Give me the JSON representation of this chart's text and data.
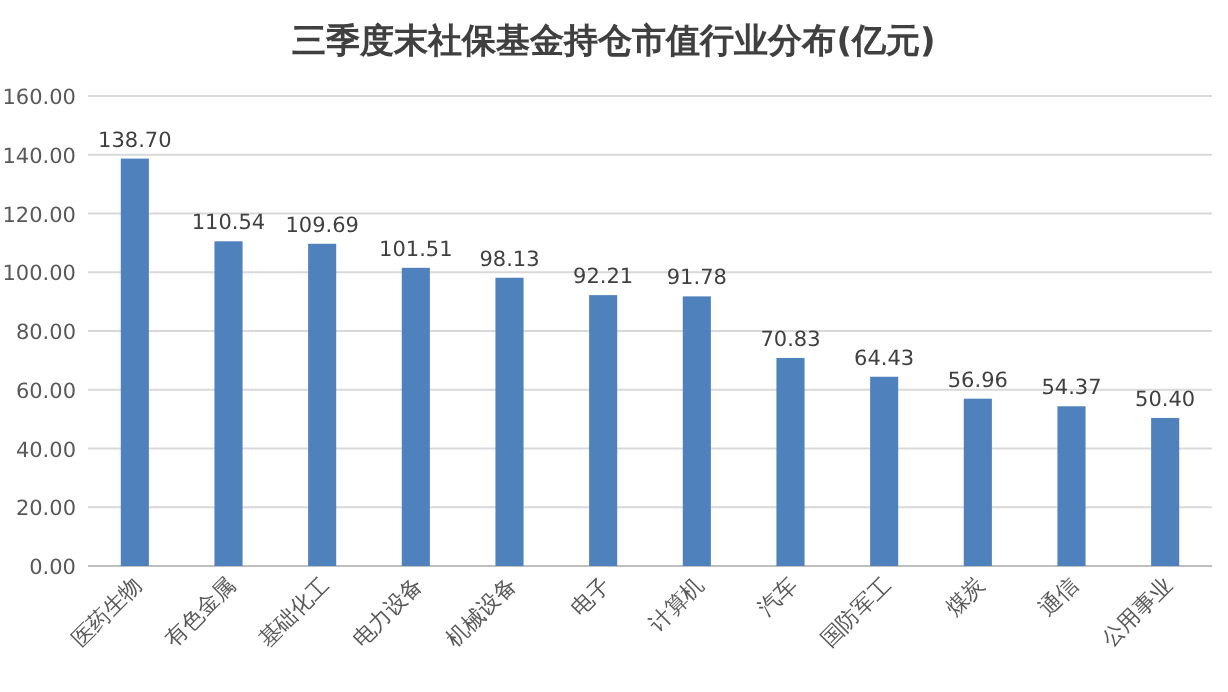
{
  "chart_data": {
    "type": "bar",
    "title": "三季度末社保基金持仓市值行业分布(亿元)",
    "categories": [
      "医药生物",
      "有色金属",
      "基础化工",
      "电力设备",
      "机械设备",
      "电子",
      "计算机",
      "汽车",
      "国防军工",
      "煤炭",
      "通信",
      "公用事业"
    ],
    "values": [
      138.7,
      110.54,
      109.69,
      101.51,
      98.13,
      92.21,
      91.78,
      70.83,
      64.43,
      56.96,
      54.37,
      50.4
    ],
    "value_labels": [
      "138.70",
      "110.54",
      "109.69",
      "101.51",
      "98.13",
      "92.21",
      "91.78",
      "70.83",
      "64.43",
      "56.96",
      "54.37",
      "50.40"
    ],
    "color": "#4f81bd",
    "ylim": [
      0,
      160
    ],
    "yticks": [
      {
        "value": 0,
        "label": "0.00"
      },
      {
        "value": 20,
        "label": "20.00"
      },
      {
        "value": 40,
        "label": "40.00"
      },
      {
        "value": 60,
        "label": "60.00"
      },
      {
        "value": 80,
        "label": "80.00"
      },
      {
        "value": 100,
        "label": "100.00"
      },
      {
        "value": 120,
        "label": "120.00"
      },
      {
        "value": 140,
        "label": "140.00"
      },
      {
        "value": 160,
        "label": "160.00"
      }
    ],
    "grid": "y"
  }
}
